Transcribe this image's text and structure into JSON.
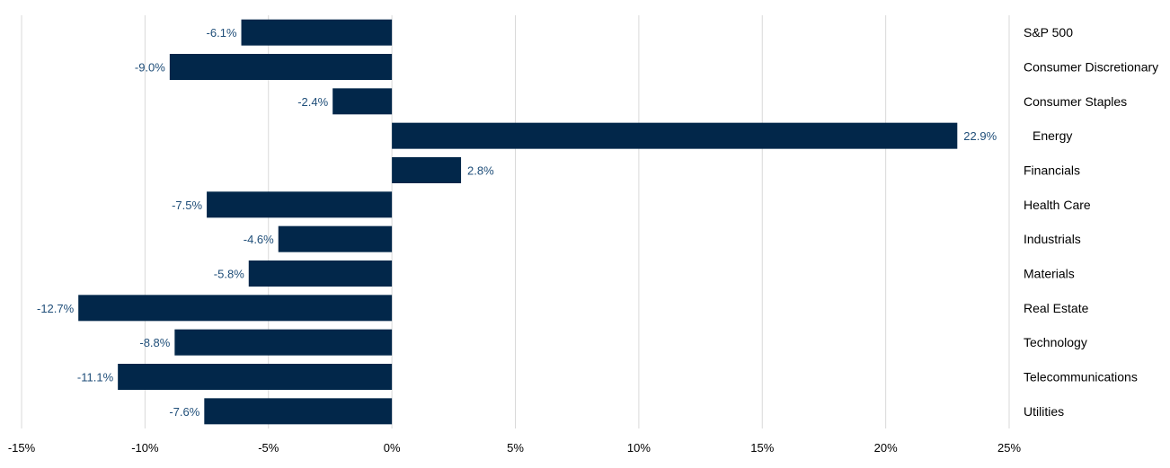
{
  "chart_data": {
    "type": "bar",
    "orientation": "horizontal",
    "categories": [
      "S&P 500",
      "Consumer Discretionary",
      "Consumer Staples",
      "Energy",
      "Financials",
      "Health Care",
      "Industrials",
      "Materials",
      "Real Estate",
      "Technology",
      "Telecommunications",
      "Utilities"
    ],
    "values": [
      -6.1,
      -9.0,
      -2.4,
      22.9,
      2.8,
      -7.5,
      -4.6,
      -5.8,
      -12.7,
      -8.8,
      -11.1,
      -7.6
    ],
    "data_labels": [
      "-6.1%",
      "-9.0%",
      "-2.4%",
      "22.9%",
      "2.8%",
      "-7.5%",
      "-4.6%",
      "-5.8%",
      "-12.7%",
      "-8.8%",
      "-11.1%",
      "-7.6%"
    ],
    "x_ticks": [
      "-15%",
      "-10%",
      "-5%",
      "0%",
      "5%",
      "10%",
      "15%",
      "20%",
      "25%"
    ],
    "x_tick_values": [
      -15,
      -10,
      -5,
      0,
      5,
      10,
      15,
      20,
      25
    ],
    "xlim": [
      -15,
      25
    ],
    "grid": "vertical",
    "legend": "none",
    "title": "",
    "xlabel": "",
    "ylabel": "",
    "colors": {
      "bar": "#02274a",
      "label": "#1f4e79",
      "grid": "#d9d9d9"
    }
  }
}
